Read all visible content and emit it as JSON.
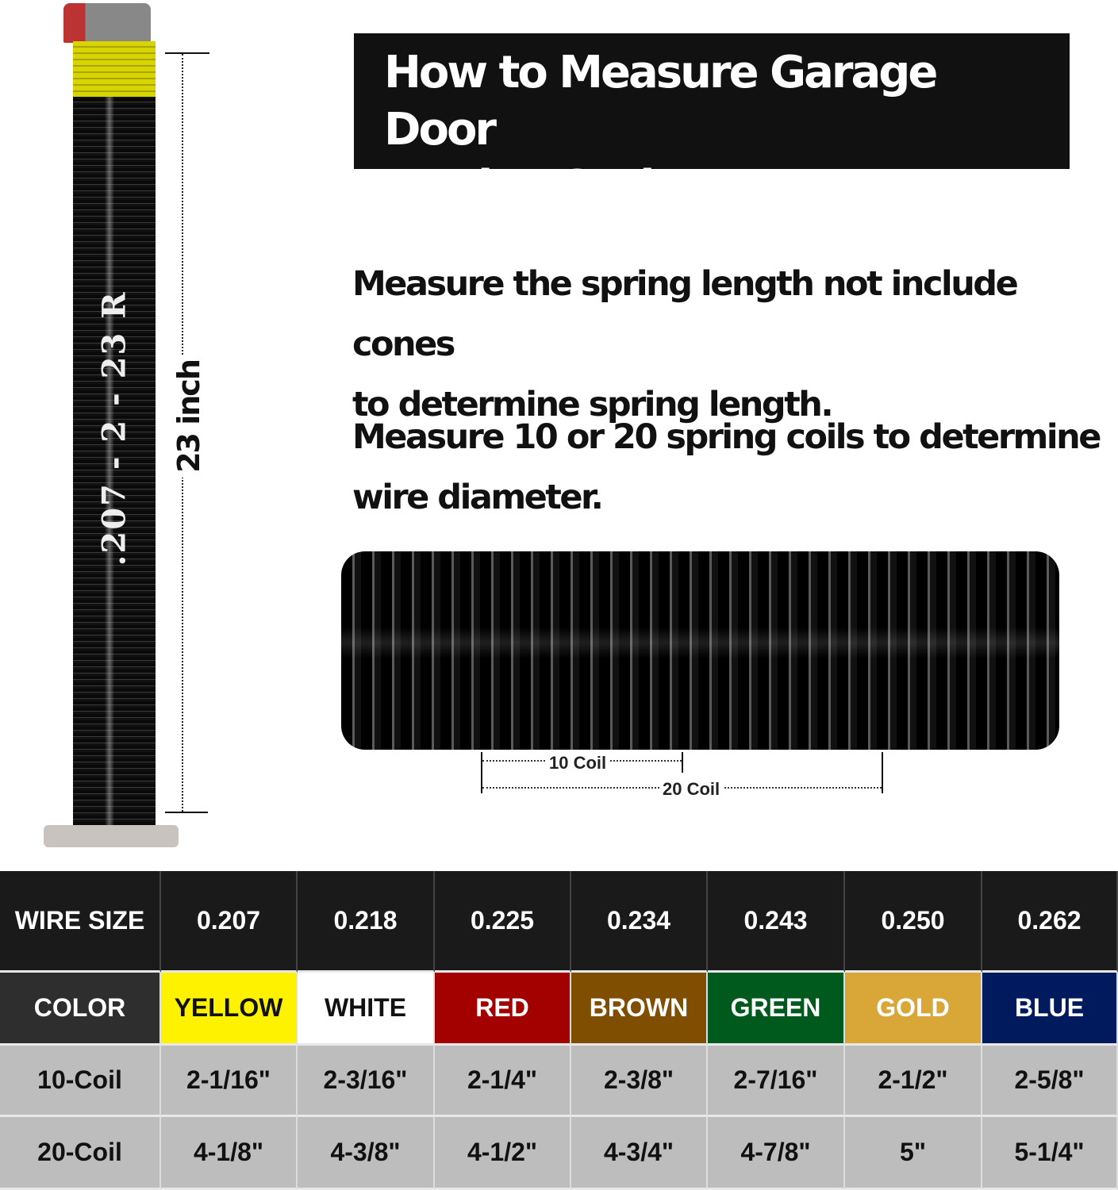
{
  "title": {
    "line1": "How to Measure Garage Door",
    "line2": "Torsion Spring"
  },
  "instructions": [
    {
      "line1": "Measure the spring length not include cones",
      "line2": "to determine spring length."
    },
    {
      "line1": "Measure 10 or 20 spring coils to determine",
      "line2": "wire diameter."
    }
  ],
  "spring_code": ".207 - 2 - 23 R",
  "length_label": "23 inch",
  "coil_labels": {
    "ten": "10 Coil",
    "twenty": "20 Coil"
  },
  "table": {
    "wire_size_label": "WIRE SIZE",
    "color_label": "COLOR",
    "ten_label": "10-Coil",
    "twenty_label": "20-Coil",
    "columns": [
      {
        "wire": "0.207",
        "color": "YELLOW",
        "bg": "#fff200",
        "fg": "#111111",
        "ten": "2-1/16\"",
        "twenty": "4-1/8\""
      },
      {
        "wire": "0.218",
        "color": "WHITE",
        "bg": "#ffffff",
        "fg": "#111111",
        "ten": "2-3/16\"",
        "twenty": "4-3/8\""
      },
      {
        "wire": "0.225",
        "color": "RED",
        "bg": "#a30000",
        "fg": "#ffffff",
        "ten": "2-1/4\"",
        "twenty": "4-1/2\""
      },
      {
        "wire": "0.234",
        "color": "BROWN",
        "bg": "#804e00",
        "fg": "#ffffff",
        "ten": "2-3/8\"",
        "twenty": "4-3/4\""
      },
      {
        "wire": "0.243",
        "color": "GREEN",
        "bg": "#005a1e",
        "fg": "#ffffff",
        "ten": "2-7/16\"",
        "twenty": "4-7/8\""
      },
      {
        "wire": "0.250",
        "color": "GOLD",
        "bg": "#d9a737",
        "fg": "#ffffff",
        "ten": "2-1/2\"",
        "twenty": "5\""
      },
      {
        "wire": "0.262",
        "color": "BLUE",
        "bg": "#001a5e",
        "fg": "#ffffff",
        "ten": "2-5/8\"",
        "twenty": "5-1/4\""
      }
    ]
  }
}
